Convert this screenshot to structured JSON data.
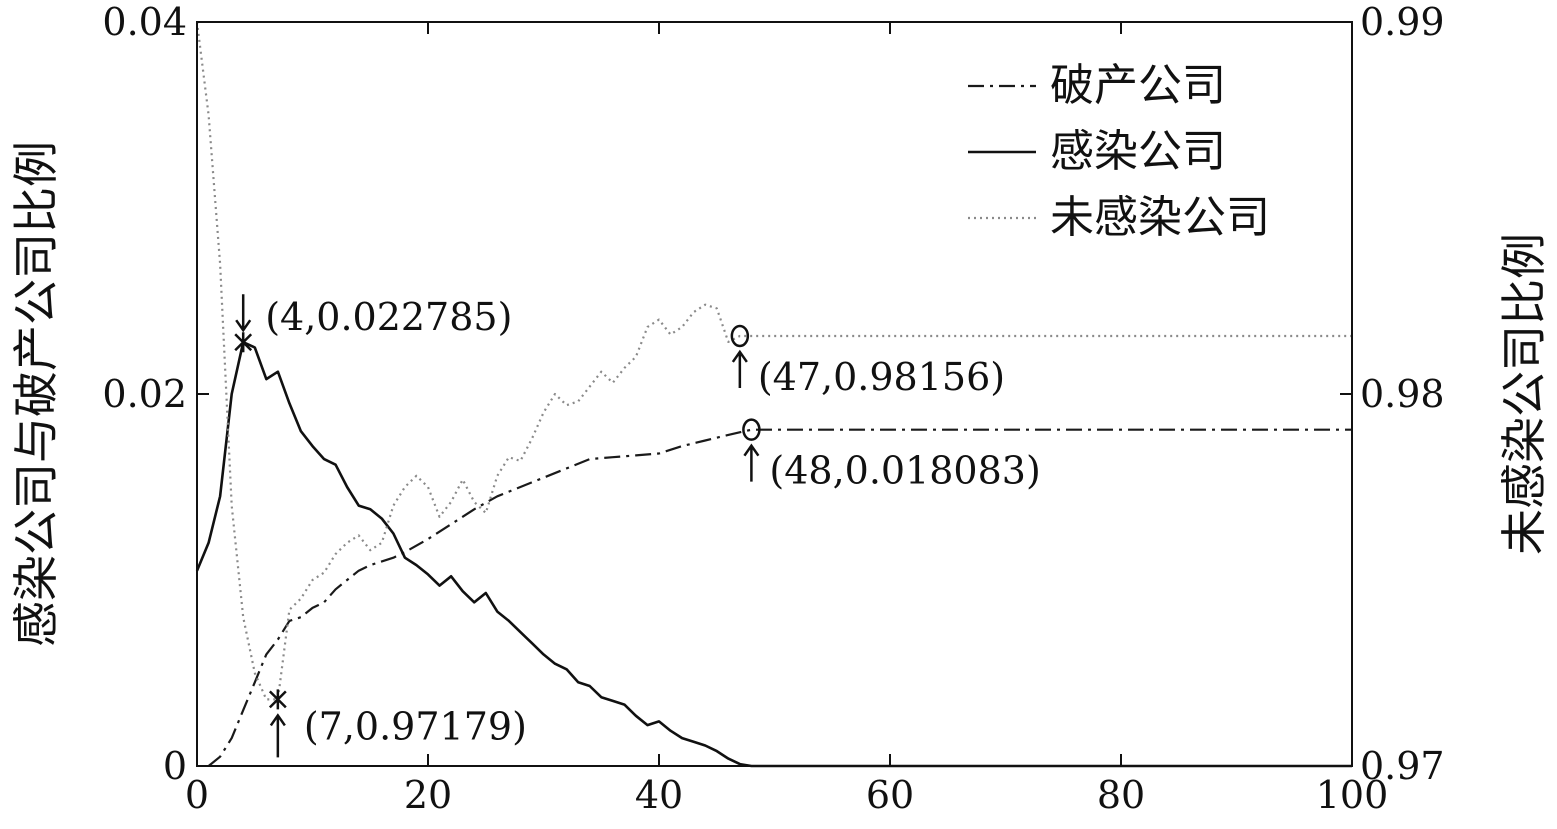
{
  "chart_data": {
    "type": "line",
    "xlim": [
      0,
      100
    ],
    "ylim_left": [
      0,
      0.04
    ],
    "ylim_right": [
      0.97,
      0.99
    ],
    "x_ticks": [
      "0",
      "20",
      "40",
      "60",
      "80",
      "100"
    ],
    "left_ticks": [
      "0",
      "0.02",
      "0.04"
    ],
    "right_ticks": [
      "0.97",
      "0.98",
      "0.99"
    ],
    "ylabel_left": "感染公司与破产公司比例",
    "ylabel_right": "未感染公司比例",
    "grid": false,
    "legend_position": "top-right",
    "series": [
      {
        "name": "破产公司",
        "axis": "left",
        "style": "dashdot",
        "color": "#1a1a1a",
        "points": [
          [
            1,
            0
          ],
          [
            2,
            0.0005
          ],
          [
            3,
            0.0015
          ],
          [
            4,
            0.003
          ],
          [
            5,
            0.0045
          ],
          [
            6,
            0.006
          ],
          [
            7,
            0.0068
          ],
          [
            8,
            0.0078
          ],
          [
            9,
            0.008
          ],
          [
            10,
            0.0085
          ],
          [
            11,
            0.0088
          ],
          [
            12,
            0.0095
          ],
          [
            13,
            0.01
          ],
          [
            14,
            0.0105
          ],
          [
            15,
            0.0108
          ],
          [
            16,
            0.011
          ],
          [
            17,
            0.0112
          ],
          [
            18,
            0.0115
          ],
          [
            20,
            0.0122
          ],
          [
            22,
            0.013
          ],
          [
            24,
            0.0138
          ],
          [
            26,
            0.0145
          ],
          [
            28,
            0.015
          ],
          [
            30,
            0.0155
          ],
          [
            32,
            0.016
          ],
          [
            34,
            0.0165
          ],
          [
            36,
            0.0166
          ],
          [
            38,
            0.0167
          ],
          [
            40,
            0.0168
          ],
          [
            42,
            0.0172
          ],
          [
            44,
            0.0175
          ],
          [
            46,
            0.0178
          ],
          [
            48,
            0.018083
          ],
          [
            100,
            0.018083
          ]
        ]
      },
      {
        "name": "感染公司",
        "axis": "left",
        "style": "solid",
        "color": "#111111",
        "points": [
          [
            0,
            0.0105
          ],
          [
            1,
            0.012
          ],
          [
            2,
            0.0145
          ],
          [
            3,
            0.02
          ],
          [
            4,
            0.022785
          ],
          [
            5,
            0.0225
          ],
          [
            6,
            0.0208
          ],
          [
            7,
            0.0212
          ],
          [
            8,
            0.0195
          ],
          [
            9,
            0.018
          ],
          [
            10,
            0.0172
          ],
          [
            11,
            0.0165
          ],
          [
            12,
            0.0162
          ],
          [
            13,
            0.015
          ],
          [
            14,
            0.014
          ],
          [
            15,
            0.0138
          ],
          [
            16,
            0.0133
          ],
          [
            17,
            0.0125
          ],
          [
            18,
            0.0112
          ],
          [
            19,
            0.0108
          ],
          [
            20,
            0.0103
          ],
          [
            21,
            0.0097
          ],
          [
            22,
            0.0102
          ],
          [
            23,
            0.0094
          ],
          [
            24,
            0.0088
          ],
          [
            25,
            0.0093
          ],
          [
            26,
            0.0083
          ],
          [
            27,
            0.0078
          ],
          [
            28,
            0.0072
          ],
          [
            29,
            0.0066
          ],
          [
            30,
            0.006
          ],
          [
            31,
            0.0055
          ],
          [
            32,
            0.0052
          ],
          [
            33,
            0.0045
          ],
          [
            34,
            0.0043
          ],
          [
            35,
            0.0037
          ],
          [
            36,
            0.0035
          ],
          [
            37,
            0.0033
          ],
          [
            38,
            0.0027
          ],
          [
            39,
            0.0022
          ],
          [
            40,
            0.0024
          ],
          [
            41,
            0.0019
          ],
          [
            42,
            0.0015
          ],
          [
            43,
            0.0013
          ],
          [
            44,
            0.0011
          ],
          [
            45,
            0.0008
          ],
          [
            46,
            0.0004
          ],
          [
            47,
            0.0001
          ],
          [
            48,
            0
          ],
          [
            100,
            0
          ]
        ]
      },
      {
        "name": "未感染公司",
        "axis": "right",
        "style": "dotted",
        "color": "#8a8a8a",
        "points": [
          [
            0,
            0.99
          ],
          [
            1,
            0.9875
          ],
          [
            2,
            0.9835
          ],
          [
            3,
            0.977
          ],
          [
            4,
            0.974
          ],
          [
            5,
            0.9725
          ],
          [
            6,
            0.97179
          ],
          [
            7,
            0.97179
          ],
          [
            8,
            0.9742
          ],
          [
            9,
            0.9745
          ],
          [
            10,
            0.975
          ],
          [
            11,
            0.9752
          ],
          [
            12,
            0.9757
          ],
          [
            13,
            0.976
          ],
          [
            14,
            0.9762
          ],
          [
            15,
            0.9758
          ],
          [
            16,
            0.976
          ],
          [
            17,
            0.977
          ],
          [
            18,
            0.9775
          ],
          [
            19,
            0.9778
          ],
          [
            20,
            0.9775
          ],
          [
            21,
            0.9767
          ],
          [
            22,
            0.9771
          ],
          [
            23,
            0.9777
          ],
          [
            24,
            0.9771
          ],
          [
            25,
            0.9768
          ],
          [
            26,
            0.9778
          ],
          [
            27,
            0.9783
          ],
          [
            28,
            0.9782
          ],
          [
            29,
            0.9788
          ],
          [
            30,
            0.9795
          ],
          [
            31,
            0.98
          ],
          [
            32,
            0.9797
          ],
          [
            33,
            0.9798
          ],
          [
            34,
            0.9802
          ],
          [
            35,
            0.9806
          ],
          [
            36,
            0.9803
          ],
          [
            37,
            0.9807
          ],
          [
            38,
            0.981
          ],
          [
            39,
            0.9818
          ],
          [
            40,
            0.982
          ],
          [
            41,
            0.9816
          ],
          [
            42,
            0.9818
          ],
          [
            43,
            0.9822
          ],
          [
            44,
            0.9824
          ],
          [
            45,
            0.9823
          ],
          [
            46,
            0.9814
          ],
          [
            47,
            0.98156
          ],
          [
            100,
            0.98156
          ]
        ]
      }
    ],
    "annotations": [
      {
        "text": "(4,0.022785)",
        "x": 4,
        "y": 0.022785,
        "axis": "left",
        "marker": "star",
        "arrow": "down"
      },
      {
        "text": "(7,0.97179)",
        "x": 7,
        "y": 0.97179,
        "axis": "right",
        "marker": "star",
        "arrow": "up"
      },
      {
        "text": "(47,0.98156)",
        "x": 47,
        "y": 0.98156,
        "axis": "right",
        "marker": "circle",
        "arrow": "up"
      },
      {
        "text": "(48,0.018083)",
        "x": 48,
        "y": 0.018083,
        "axis": "left",
        "marker": "circle",
        "arrow": "up"
      }
    ]
  }
}
